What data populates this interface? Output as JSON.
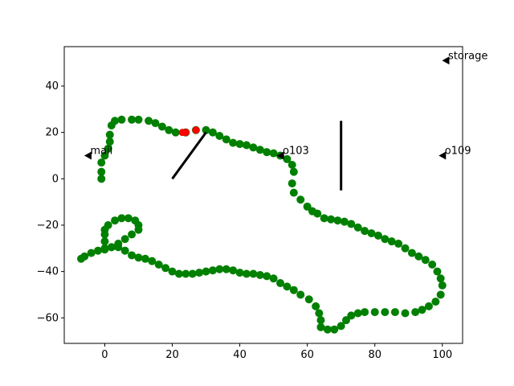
{
  "chart_data": {
    "type": "scatter",
    "title": "",
    "xlabel": "",
    "ylabel": "",
    "xlim": [
      -12,
      106
    ],
    "ylim": [
      -71,
      57
    ],
    "xticks": [
      0,
      20,
      40,
      60,
      80,
      100
    ],
    "yticks": [
      -60,
      -40,
      -20,
      0,
      20,
      40
    ],
    "grid": false,
    "colors": {
      "path": "#008000",
      "highlight": "#ff0000",
      "landmark": "#000000",
      "wall": "#000000"
    },
    "path": [
      [
        -1,
        0
      ],
      [
        -1,
        3
      ],
      [
        -1,
        7
      ],
      [
        0,
        10
      ],
      [
        1,
        13
      ],
      [
        1.5,
        16
      ],
      [
        1.5,
        19
      ],
      [
        2,
        23
      ],
      [
        3,
        25
      ],
      [
        5,
        25.5
      ],
      [
        8,
        25.5
      ],
      [
        10,
        25.5
      ],
      [
        13,
        25
      ],
      [
        15,
        24
      ],
      [
        17,
        22.5
      ],
      [
        19,
        21
      ],
      [
        21,
        20
      ],
      [
        24,
        20
      ],
      [
        27,
        21
      ],
      [
        30,
        21
      ],
      [
        32,
        20
      ],
      [
        34,
        18.5
      ],
      [
        36,
        17
      ],
      [
        38,
        15.5
      ],
      [
        40,
        15
      ],
      [
        42,
        14.5
      ],
      [
        44,
        13.5
      ],
      [
        46,
        12.5
      ],
      [
        48,
        11.5
      ],
      [
        50,
        11
      ],
      [
        52,
        10
      ],
      [
        54,
        8.5
      ],
      [
        55.5,
        6
      ],
      [
        56,
        3
      ],
      [
        55.5,
        -2
      ],
      [
        56,
        -6
      ],
      [
        58,
        -9
      ],
      [
        60,
        -12
      ],
      [
        61.5,
        -14
      ],
      [
        63,
        -15
      ],
      [
        65,
        -17
      ],
      [
        67,
        -17.5
      ],
      [
        69,
        -18
      ],
      [
        71,
        -18.5
      ],
      [
        73,
        -19.5
      ],
      [
        75,
        -21
      ],
      [
        77,
        -22.5
      ],
      [
        79,
        -23.5
      ],
      [
        81,
        -24.5
      ],
      [
        83,
        -26
      ],
      [
        85,
        -27
      ],
      [
        87,
        -28
      ],
      [
        89,
        -30
      ],
      [
        91,
        -32
      ],
      [
        93,
        -33.5
      ],
      [
        95,
        -35
      ],
      [
        97,
        -37
      ],
      [
        98.5,
        -40
      ],
      [
        99.5,
        -43
      ],
      [
        100,
        -46
      ],
      [
        99.5,
        -50
      ],
      [
        98,
        -53
      ],
      [
        96,
        -55
      ],
      [
        94,
        -56.5
      ],
      [
        92,
        -57.5
      ],
      [
        89,
        -58
      ],
      [
        86,
        -57.5
      ],
      [
        83,
        -57.5
      ],
      [
        80,
        -57.5
      ],
      [
        77,
        -57.5
      ],
      [
        75,
        -58
      ],
      [
        73,
        -59
      ],
      [
        71.5,
        -61
      ],
      [
        70,
        -63.5
      ],
      [
        68,
        -65
      ],
      [
        66,
        -65
      ],
      [
        64,
        -64
      ],
      [
        64,
        -61
      ],
      [
        63.5,
        -58
      ],
      [
        62.5,
        -55
      ],
      [
        60.5,
        -52
      ],
      [
        58,
        -50
      ],
      [
        56,
        -48
      ],
      [
        54,
        -46.5
      ],
      [
        52,
        -45
      ],
      [
        50,
        -43
      ],
      [
        48,
        -42
      ],
      [
        46,
        -41.5
      ],
      [
        44,
        -41
      ],
      [
        42,
        -41
      ],
      [
        40,
        -40.5
      ],
      [
        38,
        -39.5
      ],
      [
        36,
        -39
      ],
      [
        34,
        -39
      ],
      [
        32,
        -39.5
      ],
      [
        30,
        -40
      ],
      [
        28,
        -40.5
      ],
      [
        26,
        -41
      ],
      [
        24,
        -41
      ],
      [
        22,
        -41
      ],
      [
        20,
        -40
      ],
      [
        18,
        -38.5
      ],
      [
        16,
        -37
      ],
      [
        14,
        -35.5
      ],
      [
        12,
        -34.5
      ],
      [
        10,
        -34
      ],
      [
        8,
        -33
      ],
      [
        6,
        -31
      ],
      [
        4,
        -29.5
      ],
      [
        2,
        -29.5
      ],
      [
        0,
        -30
      ],
      [
        0,
        -27
      ],
      [
        0,
        -24
      ],
      [
        0,
        -22
      ],
      [
        1,
        -20
      ],
      [
        3,
        -18
      ],
      [
        5,
        -17
      ],
      [
        7,
        -17
      ],
      [
        9,
        -18
      ],
      [
        10,
        -20
      ],
      [
        10,
        -22
      ],
      [
        8,
        -24
      ],
      [
        6,
        -26
      ],
      [
        4,
        -28
      ],
      [
        2,
        -29.5
      ],
      [
        0,
        -30.5
      ],
      [
        -2,
        -31
      ],
      [
        -4,
        -32
      ],
      [
        -6,
        -33.5
      ],
      [
        -7,
        -34.5
      ]
    ],
    "highlights": [
      [
        23,
        20
      ],
      [
        24,
        20
      ],
      [
        27,
        21
      ]
    ],
    "walls": [
      {
        "from": [
          20,
          0
        ],
        "to": [
          30,
          20
        ]
      },
      {
        "from": [
          70,
          -5
        ],
        "to": [
          70,
          25
        ]
      }
    ],
    "landmarks": [
      {
        "x": -5,
        "y": 10,
        "label": "mail"
      },
      {
        "x": 52,
        "y": 10,
        "label": "o103"
      },
      {
        "x": 100,
        "y": 10,
        "label": "o109"
      },
      {
        "x": 101,
        "y": 51,
        "label": "storage"
      }
    ]
  }
}
